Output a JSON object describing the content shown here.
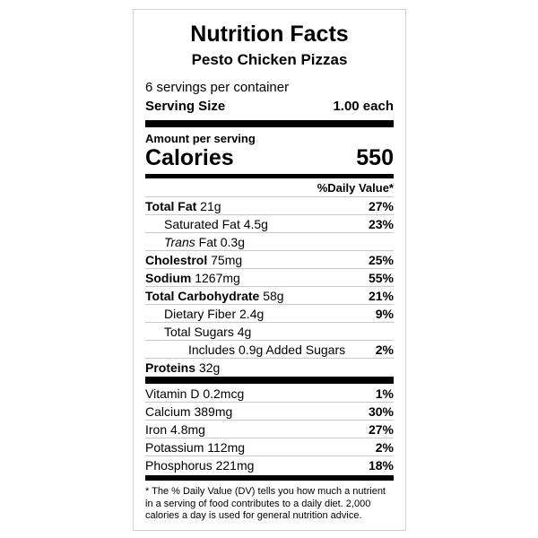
{
  "label": {
    "title": "Nutrition Facts",
    "product_name": "Pesto Chicken Pizzas",
    "servings_per_container": "6 servings per container",
    "serving_size_label": "Serving Size",
    "serving_size_value": "1.00 each",
    "amount_per_serving": "Amount per serving",
    "calories_label": "Calories",
    "calories_value": "550",
    "daily_value_header": "%Daily Value*",
    "rows": [
      {
        "bold": "Total Fat",
        "text": " 21g",
        "dv": "27%",
        "indent": 0
      },
      {
        "text": "Saturated Fat 4.5g",
        "dv": "23%",
        "indent": 1
      },
      {
        "italic": "Trans",
        "text": " Fat 0.3g",
        "dv": "",
        "indent": 1
      },
      {
        "bold": "Cholestrol",
        "text": " 75mg",
        "dv": "25%",
        "indent": 0
      },
      {
        "bold": "Sodium",
        "text": " 1267mg",
        "dv": "55%",
        "indent": 0
      },
      {
        "bold": "Total Carbohydrate",
        "text": " 58g",
        "dv": "21%",
        "indent": 0
      },
      {
        "text": "Dietary Fiber 2.4g",
        "dv": "9%",
        "indent": 1
      },
      {
        "text": "Total Sugars 4g",
        "dv": "",
        "indent": 1
      },
      {
        "text": "Includes 0.9g Added Sugars",
        "dv": "2%",
        "indent": 2
      },
      {
        "bold": "Proteins",
        "text": " 32g",
        "dv": "",
        "indent": 0
      }
    ],
    "vitamins": [
      {
        "text": "Vitamin D 0.2mcg",
        "dv": "1%"
      },
      {
        "text": "Calcium 389mg",
        "dv": "30%"
      },
      {
        "text": "Iron 4.8mg",
        "dv": "27%"
      },
      {
        "text": "Potassium 112mg",
        "dv": "2%"
      },
      {
        "text": "Phosphorus 221mg",
        "dv": "18%"
      }
    ],
    "footnote": "* The % Daily Value (DV) tells you how much a nutrient in a serving of food contributes to a daily diet. 2,000 calories a day is used for general nutrition advice.",
    "colors": {
      "text": "#000000",
      "section_bar": "#000000",
      "row_separator": "#c9c9c9",
      "outer_border": "#cfcfcf",
      "background": "#ffffff"
    }
  }
}
